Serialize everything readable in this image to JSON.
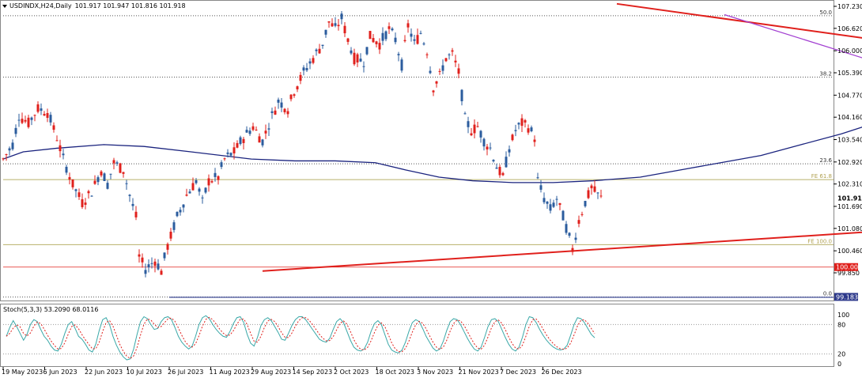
{
  "header": {
    "symbol": "USDINDX,H24,Daily",
    "ohlc": "101.917 101.947 101.816 101.918",
    "arrow_icon": "triangle-down-icon"
  },
  "chart_data": {
    "type": "candlestick",
    "colors": {
      "bull": "#2b5c9e",
      "bear": "#e0201c",
      "ma": "#1a237e",
      "trend": "#e0201c",
      "purple_line": "#a23fd1",
      "box": "#40e0d0"
    },
    "price_axis": {
      "ylim": [
        99.7,
        107.3
      ],
      "ticks": [
        "107.230",
        "106.620",
        "106.000",
        "105.390",
        "104.770",
        "104.160",
        "103.540",
        "102.920",
        "102.310",
        "101.690",
        "101.080",
        "100.460",
        "99.850"
      ]
    },
    "time_axis": {
      "ticks": [
        "19 May 2023",
        "6 Jun 2023",
        "22 Jun 2023",
        "10 Jul 2023",
        "26 Jul 2023",
        "11 Aug 2023",
        "29 Aug 2023",
        "14 Sep 2023",
        "2 Oct 2023",
        "18 Oct 2023",
        "3 Nov 2023",
        "21 Nov 2023",
        "7 Dec 2023",
        "26 Dec 2023"
      ]
    },
    "current_price": "101.918",
    "levels": [
      {
        "label": "50.0",
        "value": 106.97,
        "style": "dotted",
        "color": "#555555"
      },
      {
        "label": "38.2",
        "value": 105.27,
        "style": "dotted",
        "color": "#555555"
      },
      {
        "label": "23.6",
        "value": 102.87,
        "style": "dotted",
        "color": "#555555"
      },
      {
        "label": "FE 61.8",
        "value": 102.43,
        "style": "solid",
        "color": "#b8b06a"
      },
      {
        "label": "FE 100.0",
        "value": 100.63,
        "style": "solid",
        "color": "#b8b06a"
      },
      {
        "label": "0.0",
        "value": 99.18,
        "style": "dotted",
        "color": "#555555"
      }
    ],
    "price_tags": [
      {
        "label": "100.009",
        "value": 100.009,
        "color": "#e0201c"
      },
      {
        "label": "99.183",
        "value": 99.183,
        "color": "#2e3a8c"
      }
    ],
    "ma_points": [
      [
        0,
        103.0
      ],
      [
        6,
        103.2
      ],
      [
        16,
        103.3
      ],
      [
        30,
        103.4
      ],
      [
        42,
        103.35
      ],
      [
        56,
        103.2
      ],
      [
        74,
        103.0
      ],
      [
        87,
        102.95
      ],
      [
        99,
        102.95
      ],
      [
        111,
        102.9
      ],
      [
        120,
        102.7
      ],
      [
        130,
        102.5
      ],
      [
        140,
        102.4
      ],
      [
        152,
        102.35
      ],
      [
        164,
        102.35
      ],
      [
        176,
        102.4
      ],
      [
        190,
        102.5
      ],
      [
        202,
        102.7
      ],
      [
        214,
        102.9
      ],
      [
        226,
        103.1
      ],
      [
        238,
        103.4
      ],
      [
        250,
        103.7
      ],
      [
        260,
        104.0
      ],
      [
        270,
        104.3
      ],
      [
        278,
        104.5
      ],
      [
        286,
        104.6
      ],
      [
        292,
        104.6
      ],
      [
        300,
        104.55
      ],
      [
        306,
        104.45
      ],
      [
        316,
        104.3
      ],
      [
        326,
        104.2
      ],
      [
        338,
        104.0
      ],
      [
        346,
        103.7
      ],
      [
        352,
        103.55
      ]
    ],
    "trend_lines": [
      {
        "p1": [
          194,
          107.3
        ],
        "p2": [
          494,
          103.65
        ]
      },
      {
        "p1": [
          82,
          99.9
        ],
        "p2": [
          480,
          102.15
        ]
      }
    ],
    "diag_line": {
      "p1": [
        228,
        107.0
      ],
      "p2": [
        496,
        99.65
      ]
    },
    "box": {
      "x1": 342,
      "x2": 360,
      "y1": 102.43,
      "y2": 101.85
    },
    "stoch": {
      "label": "Stoch(5,3,3) 53.2090 68.0116",
      "ticks": [
        "100",
        "80",
        "20",
        "0"
      ],
      "k": [
        56,
        74,
        88,
        76,
        62,
        48,
        60,
        80,
        90,
        86,
        70,
        56,
        48,
        36,
        28,
        26,
        40,
        62,
        80,
        86,
        72,
        56,
        50,
        40,
        28,
        24,
        40,
        68,
        90,
        94,
        80,
        56,
        38,
        24,
        14,
        8,
        10,
        30,
        60,
        86,
        96,
        92,
        80,
        70,
        72,
        86,
        94,
        96,
        90,
        74,
        56,
        44,
        36,
        30,
        36,
        56,
        80,
        94,
        98,
        92,
        80,
        70,
        62,
        56,
        54,
        66,
        82,
        94,
        96,
        84,
        60,
        42,
        36,
        54,
        78,
        90,
        94,
        88,
        76,
        64,
        50,
        48,
        62,
        78,
        90,
        96,
        96,
        90,
        80,
        70,
        60,
        50,
        46,
        44,
        52,
        70,
        86,
        92,
        84,
        66,
        48,
        34,
        28,
        26,
        30,
        44,
        66,
        82,
        88,
        80,
        60,
        40,
        28,
        24,
        22,
        28,
        44,
        66,
        84,
        90,
        86,
        72,
        56,
        44,
        32,
        26,
        30,
        46,
        68,
        86,
        92,
        90,
        80,
        66,
        52,
        40,
        30,
        26,
        34,
        54,
        76,
        90,
        92,
        86,
        70,
        54,
        40,
        30,
        26,
        34,
        54,
        80,
        96,
        94,
        84,
        70,
        58,
        48,
        40,
        34,
        30,
        28,
        30,
        38,
        58,
        80,
        94,
        92,
        84,
        72,
        60,
        53
      ]
    }
  }
}
